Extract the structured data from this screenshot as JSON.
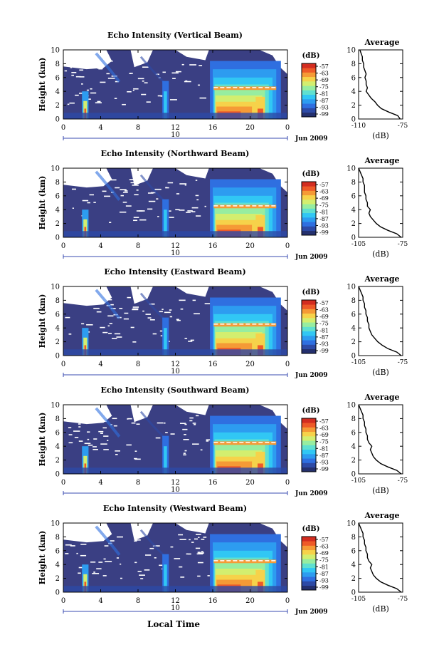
{
  "figure": {
    "xlabel": "Local Time",
    "date_label": "Jun 2009"
  },
  "colors": {
    "background": "#3a3f83",
    "clear_sky": "#ffffff",
    "colorbar": [
      "#24306e",
      "#2d4aa6",
      "#2f6fe0",
      "#2d9cf0",
      "#31c7f4",
      "#5fe0d0",
      "#97eda0",
      "#d3ee6f",
      "#f6d24a",
      "#f59a36",
      "#ee5a28",
      "#d32d20"
    ],
    "profile_line": "#000000",
    "time_axis": "#3a4bb0"
  },
  "chart_data": [
    {
      "type": "heatmap",
      "title": "Echo Intensity (Vertical Beam)",
      "ylabel": "Height (km)",
      "yticks": [
        "0",
        "2",
        "4",
        "6",
        "8",
        "10"
      ],
      "ylim": [
        0,
        10
      ],
      "xticks": [
        "0",
        "4",
        "8",
        "12",
        "16",
        "20",
        "0"
      ],
      "xlim_hours": [
        0,
        24
      ],
      "day_tick": "10",
      "colorbar": {
        "label": "(dB)",
        "ticks": [
          "-57",
          "-63",
          "-69",
          "-75",
          "-81",
          "-87",
          "-93",
          "-99"
        ]
      },
      "profile": {
        "title": "Average",
        "xlabel": "(dB)",
        "xticks": [
          "-110",
          "-75"
        ],
        "xlim": [
          -110,
          -75
        ],
        "yticks": [
          "0",
          "2",
          "4",
          "6",
          "8",
          "10"
        ],
        "height_km": [
          0,
          0.5,
          1,
          1.5,
          2,
          2.5,
          3,
          3.5,
          4,
          4.5,
          5,
          5.5,
          6,
          6.5,
          7,
          7.5,
          8,
          8.5,
          9,
          9.5,
          10
        ],
        "db": [
          -77,
          -79,
          -86,
          -92,
          -95,
          -97,
          -100,
          -102,
          -104,
          -103,
          -104,
          -104,
          -105,
          -104,
          -105,
          -106,
          -106,
          -107,
          -107,
          -108,
          -109
        ]
      }
    },
    {
      "type": "heatmap",
      "title": "Echo Intensity (Northward Beam)",
      "ylabel": "Height (km)",
      "yticks": [
        "0",
        "2",
        "4",
        "6",
        "8",
        "10"
      ],
      "ylim": [
        0,
        10
      ],
      "xticks": [
        "0",
        "4",
        "8",
        "12",
        "16",
        "20",
        "0"
      ],
      "xlim_hours": [
        0,
        24
      ],
      "day_tick": "10",
      "colorbar": {
        "label": "(dB)",
        "ticks": [
          "-57",
          "-63",
          "-69",
          "-75",
          "-81",
          "-87",
          "-93",
          "-99"
        ]
      },
      "profile": {
        "title": "Average",
        "xlabel": "(dB)",
        "xticks": [
          "-105",
          "-75"
        ],
        "xlim": [
          -105,
          -75
        ],
        "yticks": [
          "0",
          "2",
          "4",
          "6",
          "8",
          "10"
        ],
        "height_km": [
          0,
          0.5,
          1,
          1.5,
          2,
          2.5,
          3,
          3.5,
          4,
          4.5,
          5,
          5.5,
          6,
          6.5,
          7,
          7.5,
          8,
          8.5,
          9,
          9.5,
          10
        ],
        "db": [
          -76,
          -79,
          -85,
          -90,
          -93,
          -95,
          -97,
          -98,
          -97,
          -99,
          -99,
          -100,
          -100,
          -101,
          -101,
          -101,
          -102,
          -102,
          -103,
          -104,
          -105
        ]
      }
    },
    {
      "type": "heatmap",
      "title": "Echo Intensity (Eastward Beam)",
      "ylabel": "Height (km)",
      "yticks": [
        "0",
        "2",
        "4",
        "6",
        "8",
        "10"
      ],
      "ylim": [
        0,
        10
      ],
      "xticks": [
        "0",
        "4",
        "8",
        "12",
        "16",
        "20",
        "0"
      ],
      "xlim_hours": [
        0,
        24
      ],
      "day_tick": "10",
      "colorbar": {
        "label": "(dB)",
        "ticks": [
          "-57",
          "-63",
          "-69",
          "-75",
          "-81",
          "-87",
          "-93",
          "-99"
        ]
      },
      "profile": {
        "title": "Average",
        "xlabel": "(dB)",
        "xticks": [
          "-105",
          "-75"
        ],
        "xlim": [
          -105,
          -75
        ],
        "yticks": [
          "0",
          "2",
          "4",
          "6",
          "8",
          "10"
        ],
        "height_km": [
          0,
          0.5,
          1,
          1.5,
          2,
          2.5,
          3,
          3.5,
          4,
          4.5,
          5,
          5.5,
          6,
          6.5,
          7,
          7.5,
          8,
          8.5,
          9,
          9.5,
          10
        ],
        "db": [
          -76,
          -79,
          -85,
          -89,
          -92,
          -94,
          -96,
          -97,
          -98,
          -98,
          -99,
          -99,
          -100,
          -100,
          -101,
          -101,
          -102,
          -102,
          -103,
          -104,
          -105
        ]
      }
    },
    {
      "type": "heatmap",
      "title": "Echo Intensity (Southward Beam)",
      "ylabel": "Height (km)",
      "yticks": [
        "0",
        "2",
        "4",
        "6",
        "8",
        "10"
      ],
      "ylim": [
        0,
        10
      ],
      "xticks": [
        "0",
        "4",
        "8",
        "12",
        "16",
        "20",
        "0"
      ],
      "xlim_hours": [
        0,
        24
      ],
      "day_tick": "10",
      "colorbar": {
        "label": "(dB)",
        "ticks": [
          "-57",
          "-63",
          "-69",
          "-75",
          "-81",
          "-87",
          "-93",
          "-99"
        ]
      },
      "profile": {
        "title": "Average",
        "xlabel": "(dB)",
        "xticks": [
          "-105",
          "-75"
        ],
        "xlim": [
          -105,
          -75
        ],
        "yticks": [
          "0",
          "2",
          "4",
          "6",
          "8",
          "10"
        ],
        "height_km": [
          0,
          0.5,
          1,
          1.5,
          2,
          2.5,
          3,
          3.5,
          4,
          4.5,
          5,
          5.5,
          6,
          6.5,
          7,
          7.5,
          8,
          8.5,
          9,
          9.5,
          10
        ],
        "db": [
          -76,
          -79,
          -85,
          -90,
          -93,
          -95,
          -96,
          -97,
          -96,
          -98,
          -99,
          -99,
          -100,
          -100,
          -101,
          -101,
          -102,
          -102,
          -103,
          -104,
          -105
        ]
      }
    },
    {
      "type": "heatmap",
      "title": "Echo Intensity (Westward Beam)",
      "ylabel": "Height (km)",
      "yticks": [
        "0",
        "2",
        "4",
        "6",
        "8",
        "10"
      ],
      "ylim": [
        0,
        10
      ],
      "xticks": [
        "0",
        "4",
        "8",
        "12",
        "16",
        "20",
        "0"
      ],
      "xlim_hours": [
        0,
        24
      ],
      "day_tick": "10",
      "colorbar": {
        "label": "(dB)",
        "ticks": [
          "-57",
          "-63",
          "-69",
          "-75",
          "-81",
          "-87",
          "-93",
          "-99"
        ]
      },
      "profile": {
        "title": "Average",
        "xlabel": "(dB)",
        "xticks": [
          "-105",
          "-75"
        ],
        "xlim": [
          -105,
          -75
        ],
        "yticks": [
          "0",
          "2",
          "4",
          "6",
          "8",
          "10"
        ],
        "height_km": [
          0,
          0.5,
          1,
          1.5,
          2,
          2.5,
          3,
          3.5,
          4,
          4.5,
          5,
          5.5,
          6,
          6.5,
          7,
          7.5,
          8,
          8.5,
          9,
          9.5,
          10
        ],
        "db": [
          -76,
          -79,
          -85,
          -90,
          -93,
          -95,
          -96,
          -97,
          -96,
          -98,
          -99,
          -99,
          -100,
          -100,
          -101,
          -101,
          -102,
          -102,
          -103,
          -104,
          -105
        ]
      }
    }
  ]
}
